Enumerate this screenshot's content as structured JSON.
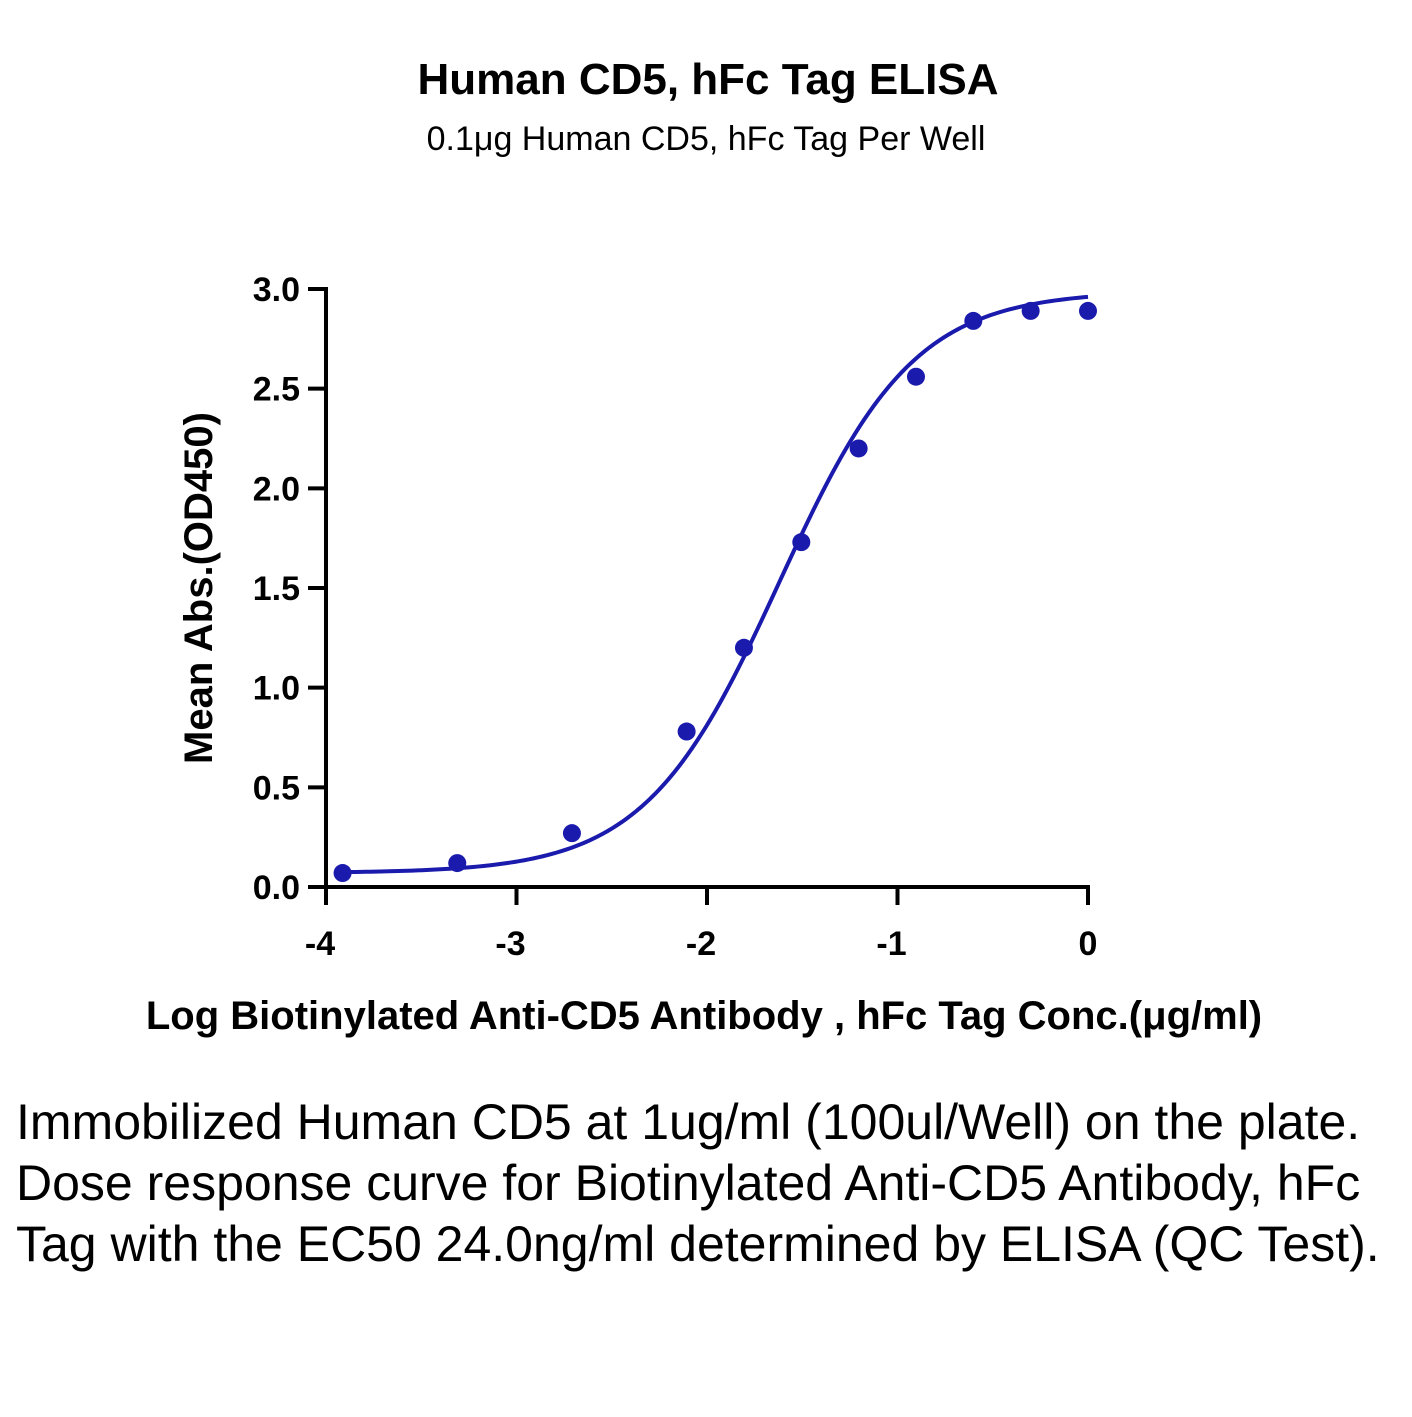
{
  "chart_data": {
    "type": "scatter",
    "title": "Human CD5, hFc Tag ELISA",
    "subtitle": "0.1μg Human CD5, hFc Tag Per Well",
    "xlabel": "Log Biotinylated Anti-CD5 Antibody , hFc Tag Conc.(μg/ml)",
    "ylabel": "Mean Abs.(OD450)",
    "xlim": [
      -4,
      0
    ],
    "ylim": [
      0,
      3.0
    ],
    "x_ticks": [
      -4,
      -3,
      -2,
      -1,
      0
    ],
    "x_tick_labels": [
      "-4",
      "-3",
      "-2",
      "-1",
      "0"
    ],
    "y_ticks": [
      0,
      0.5,
      1.0,
      1.5,
      2.0,
      2.5,
      3.0
    ],
    "y_tick_labels": [
      "0.0",
      "0.5",
      "1.0",
      "1.5",
      "2.0",
      "2.5",
      "3.0"
    ],
    "grid": false,
    "color": "#1a1aad",
    "series": [
      {
        "x": [
          -3.913,
          -3.311,
          -2.709,
          -2.107,
          -1.806,
          -1.505,
          -1.204,
          -0.903,
          -0.602,
          -0.301,
          0
        ],
        "y": [
          0.07,
          0.12,
          0.27,
          0.78,
          1.2,
          1.73,
          2.2,
          2.56,
          2.84,
          2.89,
          2.89
        ]
      }
    ],
    "fit": {
      "model": "4PL",
      "bottom": 0.07,
      "top": 2.99,
      "log_ec50": -1.62,
      "hill": 1.23
    }
  },
  "caption": "Immobilized Human CD5 at 1ug/ml (100ul/Well) on the plate. Dose response curve for Biotinylated Anti-CD5 Antibody, hFc Tag with the EC50 24.0ng/ml determined by ELISA (QC Test)."
}
